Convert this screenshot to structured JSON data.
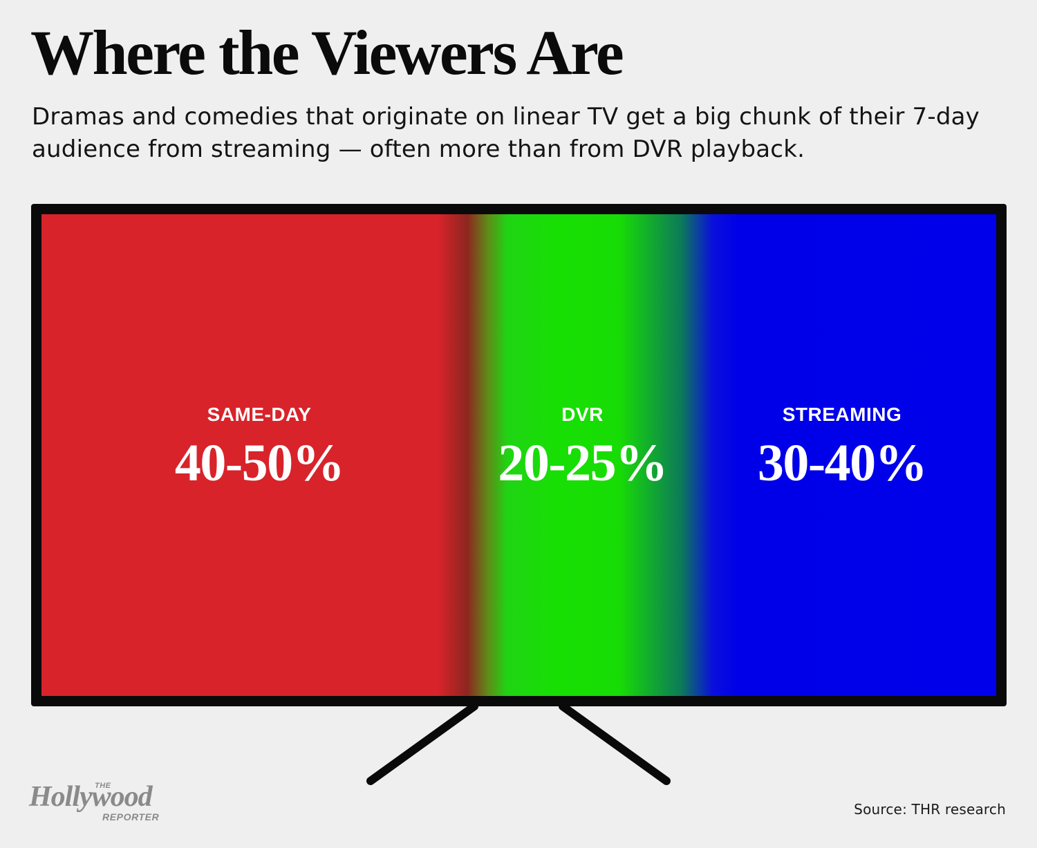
{
  "title": "Where the Viewers Are",
  "subtitle": "Dramas and comedies that originate on linear TV get a big chunk of their 7-day audience from streaming — often more than from DVR playback.",
  "chart_data": {
    "type": "bar",
    "title": "Where the Viewers Are",
    "subtitle": "Dramas and comedies that originate on linear TV get a big chunk of their 7-day audience from streaming — often more than from DVR playback.",
    "categories": [
      "SAME-DAY",
      "DVR",
      "STREAMING"
    ],
    "value_labels": [
      "40-50%",
      "20-25%",
      "30-40%"
    ],
    "ranges": [
      [
        40,
        50
      ],
      [
        20,
        25
      ],
      [
        30,
        40
      ]
    ],
    "unit": "%",
    "colors": [
      "#d8232a",
      "#17df03",
      "#0000ea"
    ],
    "xlabel": "",
    "ylabel": "",
    "grid": false,
    "legend": "none"
  },
  "source": "Source: THR research",
  "logo": {
    "the": "THE",
    "main": "Hollywood",
    "sub": "REPORTER"
  }
}
